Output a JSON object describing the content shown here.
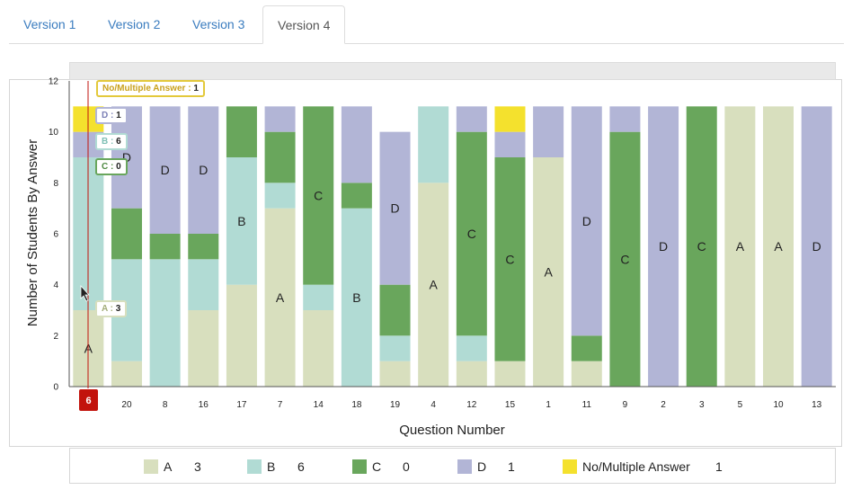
{
  "tabs": [
    {
      "label": "Version 1",
      "active": false
    },
    {
      "label": "Version 2",
      "active": false
    },
    {
      "label": "Version 3",
      "active": false
    },
    {
      "label": "Version 4",
      "active": true
    }
  ],
  "colors": {
    "A": "#d8dfbe",
    "B": "#b1dbd4",
    "C": "#69a65c",
    "D": "#b2b5d6",
    "N": "#f4e12d",
    "marker": "#c2130c",
    "tab_link": "#3a7cbf"
  },
  "chart_data": {
    "type": "bar",
    "stacked": true,
    "xlabel": "Question Number",
    "ylabel": "Number of Students By Answer",
    "ylim": [
      0,
      12
    ],
    "yticks": [
      0,
      2,
      4,
      6,
      8,
      10,
      12
    ],
    "categories": [
      "6",
      "20",
      "8",
      "16",
      "17",
      "7",
      "14",
      "18",
      "19",
      "4",
      "12",
      "15",
      "1",
      "11",
      "9",
      "2",
      "3",
      "5",
      "10",
      "13"
    ],
    "series": [
      {
        "name": "A",
        "values": [
          3,
          1,
          0,
          3,
          4,
          7,
          3,
          0,
          1,
          8,
          1,
          1,
          9,
          1,
          0,
          0,
          0,
          11,
          11,
          0
        ]
      },
      {
        "name": "B",
        "values": [
          6,
          4,
          5,
          2,
          5,
          1,
          1,
          7,
          1,
          3,
          1,
          0,
          0,
          0,
          0,
          0,
          0,
          0,
          0,
          0
        ]
      },
      {
        "name": "C",
        "values": [
          0,
          2,
          1,
          1,
          2,
          2,
          7,
          1,
          2,
          0,
          8,
          8,
          0,
          1,
          10,
          0,
          11,
          0,
          0,
          0
        ]
      },
      {
        "name": "D",
        "values": [
          1,
          4,
          5,
          5,
          0,
          1,
          0,
          3,
          6,
          0,
          1,
          1,
          2,
          9,
          1,
          11,
          0,
          0,
          0,
          11
        ]
      },
      {
        "name": "No/Multiple Answer",
        "values": [
          1,
          0,
          0,
          0,
          0,
          0,
          0,
          0,
          0,
          0,
          0,
          1,
          0,
          0,
          0,
          0,
          0,
          0,
          0,
          0
        ]
      }
    ],
    "bar_labels": [
      "A",
      "D",
      "D",
      "D",
      "B",
      "A",
      "C",
      "B",
      "D",
      "A",
      "C",
      "C",
      "A",
      "D",
      "C",
      "D",
      "C",
      "A",
      "A",
      "D"
    ],
    "selected_question": "6"
  },
  "tooltips": {
    "n": {
      "name": "No/Multiple Answer",
      "value": "1"
    },
    "d": {
      "name": "D",
      "value": "1"
    },
    "b": {
      "name": "B",
      "value": "6"
    },
    "c": {
      "name": "C",
      "value": "0"
    },
    "a": {
      "name": "A",
      "value": "3"
    }
  },
  "legend": [
    {
      "key": "A",
      "label": "A",
      "count": "3"
    },
    {
      "key": "B",
      "label": "B",
      "count": "6"
    },
    {
      "key": "C",
      "label": "C",
      "count": "0"
    },
    {
      "key": "D",
      "label": "D",
      "count": "1"
    },
    {
      "key": "N",
      "label": "No/Multiple Answer",
      "count": "1"
    }
  ]
}
